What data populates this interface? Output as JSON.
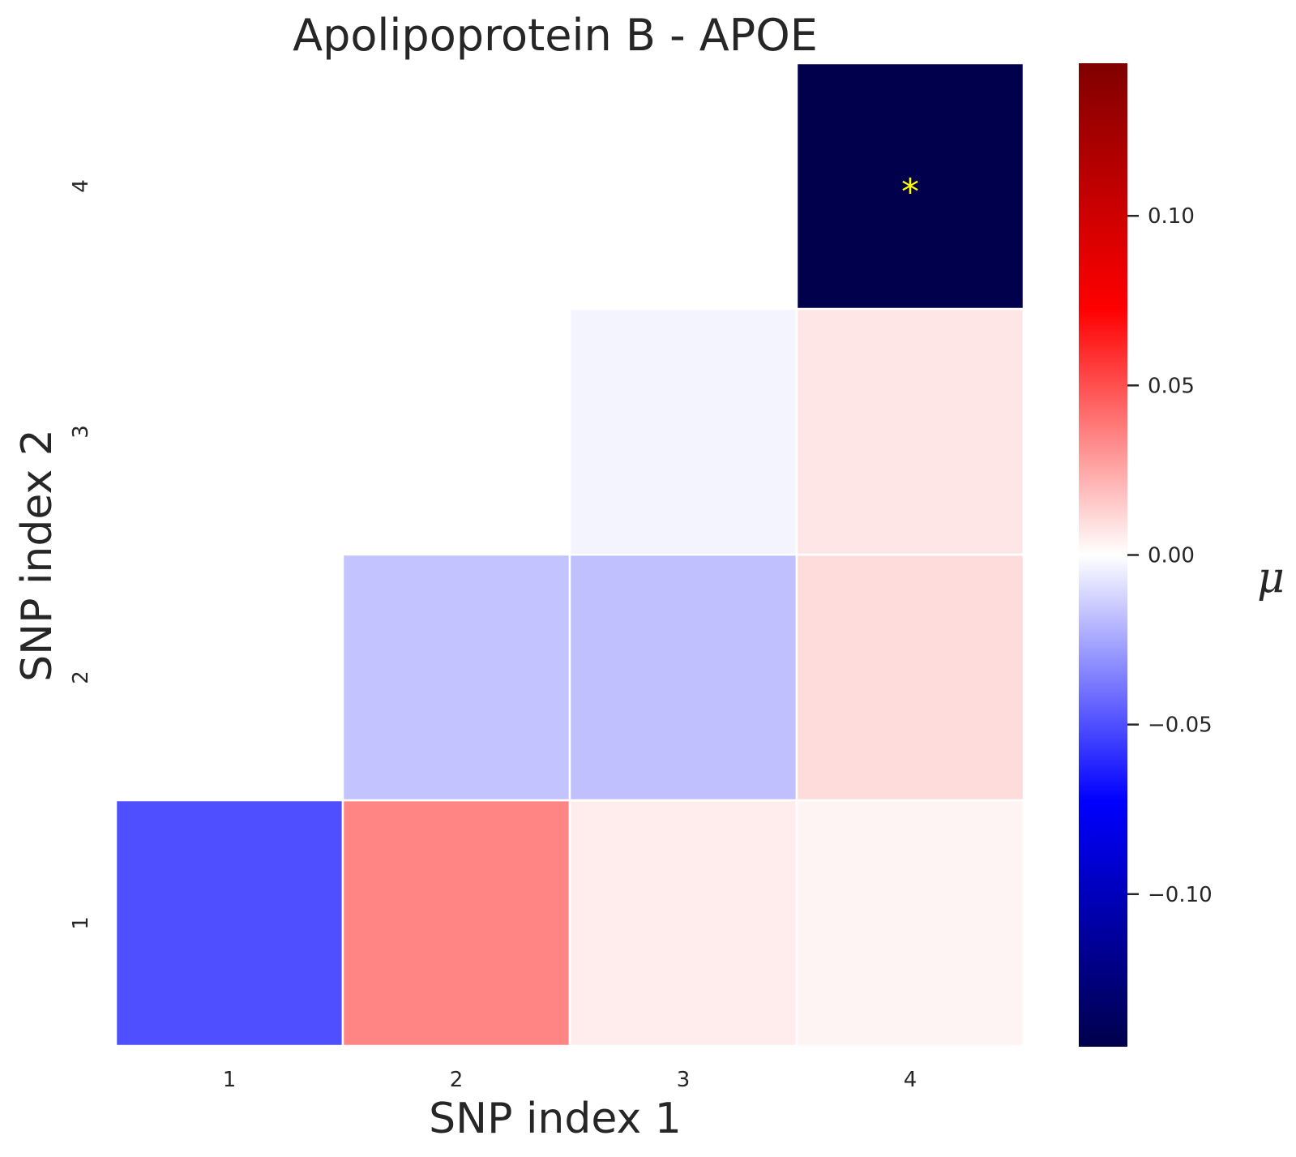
{
  "chart_data": {
    "type": "heatmap",
    "title": "Apolipoprotein B - APOE",
    "xlabel": "SNP index 1",
    "ylabel": "SNP index 2",
    "x_categories": [
      "1",
      "2",
      "3",
      "4"
    ],
    "y_categories": [
      "1",
      "2",
      "3",
      "4"
    ],
    "cells": [
      {
        "x": "1",
        "y": "1",
        "value": -0.05
      },
      {
        "x": "2",
        "y": "1",
        "value": 0.035
      },
      {
        "x": "3",
        "y": "1",
        "value": 0.005
      },
      {
        "x": "4",
        "y": "1",
        "value": 0.003
      },
      {
        "x": "2",
        "y": "2",
        "value": -0.017
      },
      {
        "x": "3",
        "y": "2",
        "value": -0.018
      },
      {
        "x": "4",
        "y": "2",
        "value": 0.01
      },
      {
        "x": "3",
        "y": "3",
        "value": -0.003
      },
      {
        "x": "4",
        "y": "3",
        "value": 0.007
      },
      {
        "x": "4",
        "y": "4",
        "value": -0.145,
        "annotation": "*"
      }
    ],
    "colorbar": {
      "label": "μ",
      "min": -0.145,
      "max": 0.145,
      "ticks": [
        0.1,
        0.05,
        0.0,
        -0.05,
        -0.1
      ],
      "tick_labels": [
        "0.10",
        "0.05",
        "0.00",
        "−0.05",
        "−0.10"
      ],
      "colormap": "seismic"
    },
    "annotation_color": "#ffff00",
    "grid": false
  }
}
